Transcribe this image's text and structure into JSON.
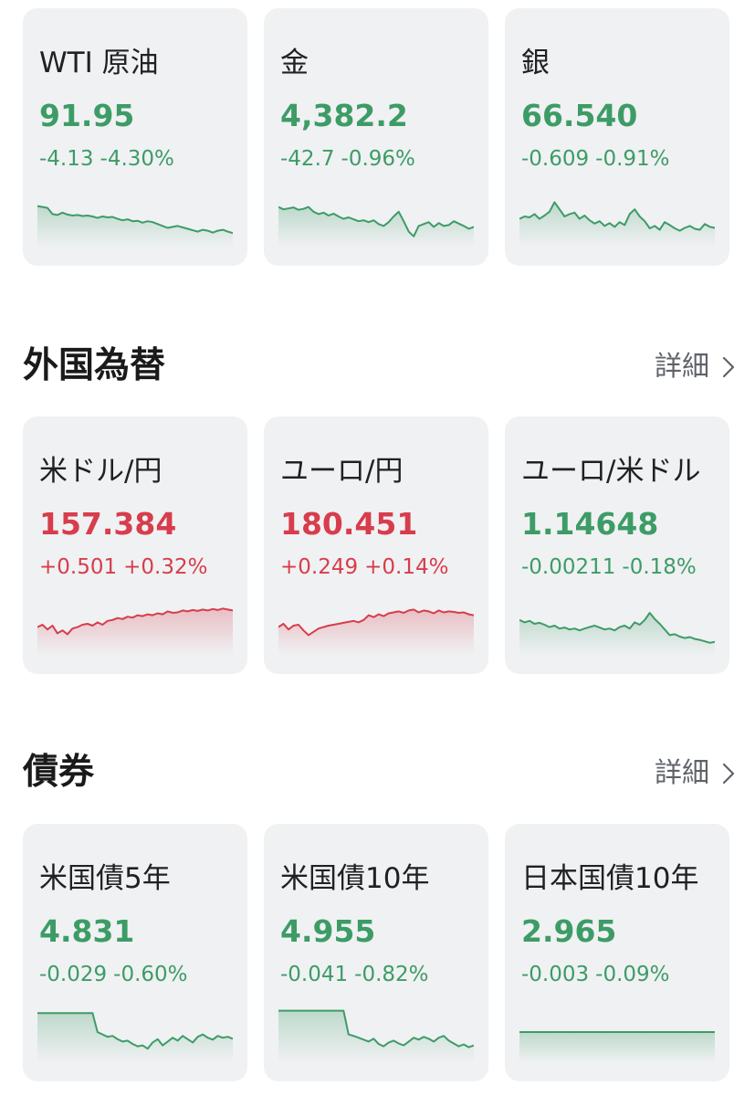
{
  "commodities": [
    {
      "name": "WTI 原油",
      "price": "91.95",
      "change": "-4.13",
      "percent": "-4.30%",
      "trend": "down",
      "color": "#3d9c66",
      "spark": [
        0.28,
        0.3,
        0.32,
        0.45,
        0.47,
        0.42,
        0.46,
        0.48,
        0.47,
        0.49,
        0.48,
        0.5,
        0.53,
        0.5,
        0.52,
        0.51,
        0.55,
        0.58,
        0.56,
        0.6,
        0.59,
        0.63,
        0.6,
        0.62,
        0.66,
        0.7,
        0.74,
        0.72,
        0.7,
        0.73,
        0.76,
        0.79,
        0.82,
        0.78,
        0.8,
        0.84,
        0.8,
        0.78,
        0.82,
        0.85
      ]
    },
    {
      "name": "金",
      "price": "4,382.2",
      "change": "-42.7",
      "percent": "-0.96%",
      "trend": "down",
      "color": "#3d9c66",
      "spark": [
        0.3,
        0.35,
        0.33,
        0.31,
        0.36,
        0.34,
        0.3,
        0.4,
        0.45,
        0.42,
        0.48,
        0.44,
        0.5,
        0.55,
        0.52,
        0.56,
        0.6,
        0.58,
        0.62,
        0.58,
        0.66,
        0.7,
        0.62,
        0.5,
        0.4,
        0.6,
        0.82,
        0.92,
        0.7,
        0.66,
        0.62,
        0.72,
        0.64,
        0.7,
        0.68,
        0.6,
        0.65,
        0.7,
        0.76,
        0.72
      ]
    },
    {
      "name": "銀",
      "price": "66.540",
      "change": "-0.609",
      "percent": "-0.91%",
      "trend": "down",
      "color": "#3d9c66",
      "spark": [
        0.55,
        0.5,
        0.52,
        0.45,
        0.55,
        0.48,
        0.4,
        0.2,
        0.35,
        0.5,
        0.45,
        0.42,
        0.55,
        0.48,
        0.58,
        0.65,
        0.6,
        0.7,
        0.64,
        0.72,
        0.62,
        0.68,
        0.45,
        0.35,
        0.5,
        0.6,
        0.75,
        0.7,
        0.78,
        0.62,
        0.68,
        0.75,
        0.8,
        0.74,
        0.7,
        0.76,
        0.78,
        0.66,
        0.72,
        0.74
      ]
    }
  ],
  "forex": {
    "title": "外国為替",
    "detail_label": "詳細",
    "items": [
      {
        "name": "米ドル/円",
        "price": "157.384",
        "change": "+0.501",
        "percent": "+0.32%",
        "trend": "up",
        "color": "#d73d4c",
        "spark": [
          0.55,
          0.5,
          0.6,
          0.52,
          0.68,
          0.62,
          0.7,
          0.58,
          0.55,
          0.5,
          0.48,
          0.52,
          0.45,
          0.5,
          0.42,
          0.4,
          0.36,
          0.38,
          0.33,
          0.35,
          0.3,
          0.32,
          0.28,
          0.3,
          0.26,
          0.28,
          0.22,
          0.25,
          0.24,
          0.2,
          0.22,
          0.19,
          0.21,
          0.18,
          0.2,
          0.17,
          0.19,
          0.16,
          0.18,
          0.2
        ]
      },
      {
        "name": "ユーロ/円",
        "price": "180.451",
        "change": "+0.249",
        "percent": "+0.14%",
        "trend": "up",
        "color": "#d73d4c",
        "spark": [
          0.55,
          0.48,
          0.6,
          0.52,
          0.5,
          0.62,
          0.72,
          0.65,
          0.58,
          0.55,
          0.52,
          0.5,
          0.48,
          0.46,
          0.44,
          0.42,
          0.45,
          0.4,
          0.3,
          0.34,
          0.28,
          0.32,
          0.26,
          0.24,
          0.22,
          0.25,
          0.2,
          0.18,
          0.24,
          0.2,
          0.22,
          0.26,
          0.2,
          0.24,
          0.22,
          0.23,
          0.25,
          0.24,
          0.28,
          0.3
        ]
      },
      {
        "name": "ユーロ/米ドル",
        "price": "1.14648",
        "change": "-0.00211",
        "percent": "-0.18%",
        "trend": "down",
        "color": "#3d9c66",
        "spark": [
          0.4,
          0.45,
          0.42,
          0.48,
          0.46,
          0.5,
          0.55,
          0.52,
          0.58,
          0.56,
          0.6,
          0.58,
          0.62,
          0.58,
          0.55,
          0.52,
          0.56,
          0.6,
          0.58,
          0.62,
          0.55,
          0.52,
          0.58,
          0.45,
          0.5,
          0.4,
          0.25,
          0.38,
          0.48,
          0.6,
          0.72,
          0.7,
          0.75,
          0.78,
          0.76,
          0.8,
          0.82,
          0.85,
          0.88,
          0.86
        ]
      }
    ]
  },
  "bonds": {
    "title": "債券",
    "detail_label": "詳細",
    "items": [
      {
        "name": "米国債5年",
        "price": "4.831",
        "change": "-0.029",
        "percent": "-0.60%",
        "trend": "down",
        "color": "#3d9c66",
        "spark": [
          0.1,
          0.1,
          0.1,
          0.1,
          0.1,
          0.1,
          0.1,
          0.1,
          0.1,
          0.1,
          0.1,
          0.1,
          0.5,
          0.55,
          0.6,
          0.58,
          0.65,
          0.7,
          0.68,
          0.75,
          0.8,
          0.78,
          0.85,
          0.72,
          0.65,
          0.78,
          0.7,
          0.62,
          0.68,
          0.58,
          0.65,
          0.72,
          0.6,
          0.55,
          0.62,
          0.66,
          0.58,
          0.62,
          0.6,
          0.64
        ]
      },
      {
        "name": "米国債10年",
        "price": "4.955",
        "change": "-0.041",
        "percent": "-0.82%",
        "trend": "down",
        "color": "#3d9c66",
        "spark": [
          0.05,
          0.05,
          0.05,
          0.05,
          0.05,
          0.05,
          0.05,
          0.05,
          0.05,
          0.05,
          0.05,
          0.05,
          0.05,
          0.05,
          0.55,
          0.58,
          0.62,
          0.66,
          0.7,
          0.64,
          0.75,
          0.8,
          0.72,
          0.68,
          0.74,
          0.78,
          0.7,
          0.62,
          0.66,
          0.6,
          0.64,
          0.7,
          0.62,
          0.58,
          0.68,
          0.74,
          0.8,
          0.76,
          0.82,
          0.78
        ]
      },
      {
        "name": "日本国債10年",
        "price": "2.965",
        "change": "-0.003",
        "percent": "-0.09%",
        "trend": "down",
        "color": "#3d9c66",
        "spark": [
          0.5,
          0.5,
          0.5,
          0.5,
          0.5,
          0.5,
          0.5,
          0.5,
          0.5,
          0.5
        ]
      }
    ]
  }
}
